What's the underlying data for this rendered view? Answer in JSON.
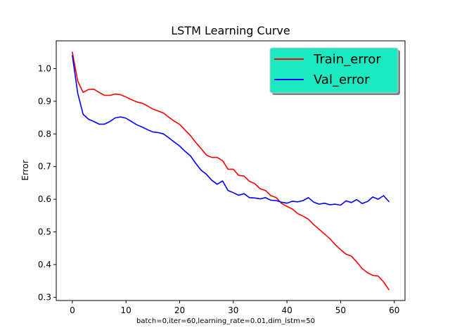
{
  "chart_data": {
    "type": "line",
    "title": "LSTM Learning Curve",
    "xlabel": "batch=0,iter=60,learning_rate=0.01,dim_lstm=50",
    "ylabel": "Error",
    "xlim": [
      -3.0,
      62.0
    ],
    "ylim": [
      0.29,
      1.085
    ],
    "xticks": [
      0,
      10,
      20,
      30,
      40,
      50,
      60
    ],
    "yticks": [
      0.3,
      0.4,
      0.5,
      0.6,
      0.7,
      0.8,
      0.9,
      1.0
    ],
    "xtick_labels": [
      "0",
      "10",
      "20",
      "30",
      "40",
      "50",
      "60"
    ],
    "ytick_labels": [
      "0.3",
      "0.4",
      "0.5",
      "0.6",
      "0.7",
      "0.8",
      "0.9",
      "1.0"
    ],
    "legend_position": "top-right",
    "legend_background": "#1de9c1",
    "grid": false,
    "x": [
      0,
      1,
      2,
      3,
      4,
      5,
      6,
      7,
      8,
      9,
      10,
      11,
      12,
      13,
      14,
      15,
      16,
      17,
      18,
      19,
      20,
      21,
      22,
      23,
      24,
      25,
      26,
      27,
      28,
      29,
      30,
      31,
      32,
      33,
      34,
      35,
      36,
      37,
      38,
      39,
      40,
      41,
      42,
      43,
      44,
      45,
      46,
      47,
      48,
      49,
      50,
      51,
      52,
      53,
      54,
      55,
      56,
      57,
      58,
      59
    ],
    "series": [
      {
        "name": "Train_error",
        "color": "#ff0000",
        "values": [
          1.05,
          0.962,
          0.927,
          0.936,
          0.937,
          0.927,
          0.918,
          0.918,
          0.922,
          0.92,
          0.913,
          0.905,
          0.898,
          0.894,
          0.886,
          0.876,
          0.87,
          0.864,
          0.851,
          0.839,
          0.829,
          0.812,
          0.795,
          0.774,
          0.755,
          0.735,
          0.728,
          0.728,
          0.718,
          0.692,
          0.692,
          0.673,
          0.671,
          0.655,
          0.648,
          0.632,
          0.627,
          0.611,
          0.605,
          0.587,
          0.578,
          0.57,
          0.556,
          0.548,
          0.539,
          0.522,
          0.508,
          0.494,
          0.479,
          0.461,
          0.446,
          0.432,
          0.426,
          0.408,
          0.388,
          0.375,
          0.367,
          0.365,
          0.347,
          0.323
        ]
      },
      {
        "name": "Val_error",
        "color": "#0000ff",
        "values": [
          1.04,
          0.925,
          0.86,
          0.845,
          0.838,
          0.83,
          0.83,
          0.838,
          0.849,
          0.852,
          0.848,
          0.838,
          0.828,
          0.821,
          0.813,
          0.806,
          0.804,
          0.8,
          0.788,
          0.775,
          0.763,
          0.747,
          0.733,
          0.71,
          0.689,
          0.676,
          0.658,
          0.646,
          0.656,
          0.627,
          0.62,
          0.612,
          0.617,
          0.605,
          0.604,
          0.601,
          0.605,
          0.597,
          0.596,
          0.591,
          0.588,
          0.594,
          0.592,
          0.596,
          0.605,
          0.591,
          0.585,
          0.588,
          0.583,
          0.585,
          0.582,
          0.595,
          0.59,
          0.599,
          0.587,
          0.593,
          0.607,
          0.6,
          0.611,
          0.593
        ]
      }
    ]
  }
}
